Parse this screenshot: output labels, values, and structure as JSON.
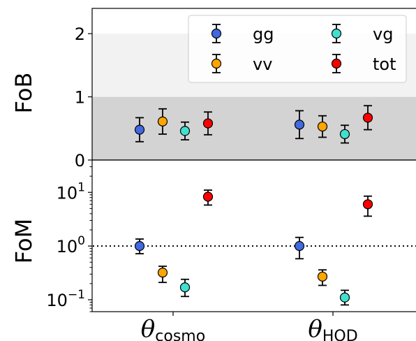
{
  "chart_data": [
    {
      "type": "scatter",
      "panel": "top",
      "ylabel": "FoB",
      "ylim": [
        0,
        2.4
      ],
      "yticks": [
        "0",
        "1",
        "2"
      ],
      "shaded_bands": [
        {
          "from": 0,
          "to": 1,
          "color": "#d3d3d3"
        },
        {
          "from": 1,
          "to": 2,
          "color": "#f2f2f2"
        }
      ],
      "categories": [
        "cosmo",
        "HOD"
      ],
      "series": [
        {
          "name": "gg",
          "color": "#4169e1",
          "values": [
            0.48,
            0.56
          ],
          "err": [
            0.19,
            0.22
          ]
        },
        {
          "name": "vv",
          "color": "#ffa500",
          "values": [
            0.61,
            0.53
          ],
          "err": [
            0.2,
            0.17
          ]
        },
        {
          "name": "vg",
          "color": "#40e0d0",
          "values": [
            0.46,
            0.41
          ],
          "err": [
            0.14,
            0.14
          ]
        },
        {
          "name": "tot",
          "color": "#ff0000",
          "values": [
            0.58,
            0.67
          ],
          "err": [
            0.18,
            0.19
          ]
        }
      ],
      "legend": {
        "placement": "top-right",
        "columns": 2,
        "order": [
          "gg",
          "vg",
          "vv",
          "tot"
        ]
      },
      "grid": false
    },
    {
      "type": "scatter",
      "panel": "bottom",
      "ylabel": "FoM",
      "yscale": "log",
      "ylim": [
        0.06,
        40
      ],
      "yticks": [
        {
          "base": "10",
          "exp": "−1",
          "value": 0.1
        },
        {
          "base": "10",
          "exp": "0",
          "value": 1
        },
        {
          "base": "10",
          "exp": "1",
          "value": 10
        }
      ],
      "reference_line": {
        "y": 1,
        "style": "dotted"
      },
      "categories": [
        "cosmo",
        "HOD"
      ],
      "series": [
        {
          "name": "gg",
          "values": [
            1.0,
            1.0
          ],
          "err_low": [
            0.72,
            0.58
          ],
          "err_high": [
            1.35,
            1.45
          ]
        },
        {
          "name": "vv",
          "values": [
            0.32,
            0.27
          ],
          "err_low": [
            0.21,
            0.185
          ],
          "err_high": [
            0.42,
            0.36
          ]
        },
        {
          "name": "vg",
          "values": [
            0.17,
            0.11
          ],
          "err_low": [
            0.115,
            0.08
          ],
          "err_high": [
            0.24,
            0.15
          ]
        },
        {
          "name": "tot",
          "values": [
            8.3,
            6.0
          ],
          "err_low": [
            5.8,
            3.6
          ],
          "err_high": [
            11.0,
            8.5
          ]
        }
      ],
      "xlabels": [
        {
          "symbol": "θ",
          "sub": "cosmo"
        },
        {
          "symbol": "θ",
          "sub": "HOD"
        }
      ],
      "grid": false
    }
  ]
}
